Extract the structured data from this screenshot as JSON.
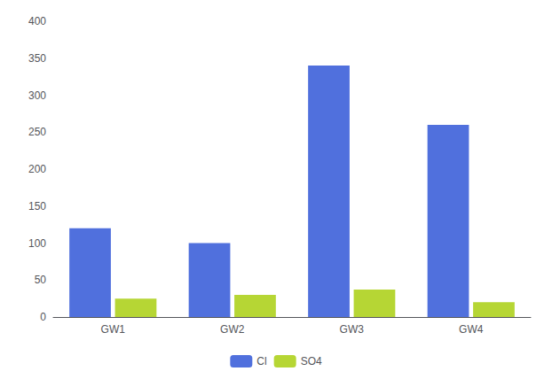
{
  "chart_data": {
    "type": "bar",
    "categories": [
      "GW1",
      "GW2",
      "GW3",
      "GW4"
    ],
    "series": [
      {
        "name": "Cl",
        "values": [
          120,
          100,
          340,
          260
        ]
      },
      {
        "name": "SO4",
        "values": [
          25,
          30,
          37,
          20
        ]
      }
    ],
    "ylim": [
      0,
      400
    ],
    "yticks": [
      0,
      50,
      100,
      150,
      200,
      250,
      300,
      350,
      400
    ],
    "grid": false,
    "legend": "bottom"
  }
}
